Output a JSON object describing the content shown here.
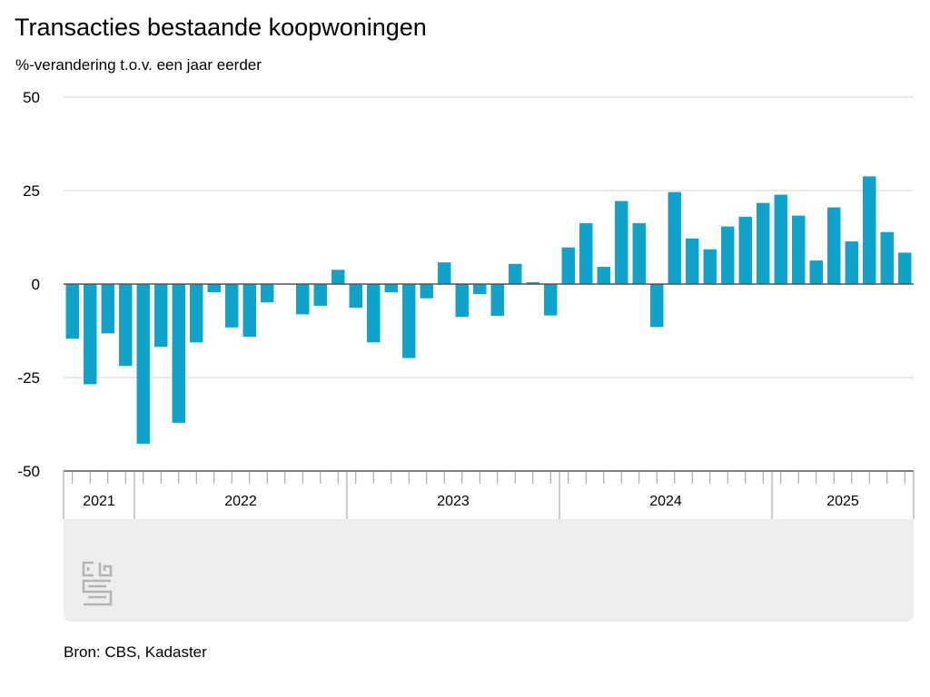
{
  "title": "Transacties bestaande koopwoningen",
  "subtitle": "%-verandering t.o.v. een jaar eerder",
  "source": "Bron: CBS, Kadaster",
  "logo_text": "cbs",
  "colors": {
    "bar": "#0fa3cc",
    "grid": "#d6d6d6",
    "axis": "#555555",
    "panel": "#eeeeee"
  },
  "chart_data": {
    "type": "bar",
    "title": "Transacties bestaande koopwoningen",
    "ylabel": "%-verandering t.o.v. een jaar eerder",
    "ylim": [
      -50,
      50
    ],
    "yticks": [
      50,
      25,
      0,
      -25,
      -50
    ],
    "ytick_labels": [
      "50",
      "25",
      "0",
      "-25",
      "-50"
    ],
    "grid": true,
    "x_years": [
      {
        "label": "2021",
        "months": 4
      },
      {
        "label": "2022",
        "months": 12
      },
      {
        "label": "2023",
        "months": 12
      },
      {
        "label": "2024",
        "months": 12
      },
      {
        "label": "2025",
        "months": 8
      }
    ],
    "categories": [
      "2021-09",
      "2021-10",
      "2021-11",
      "2021-12",
      "2022-01",
      "2022-02",
      "2022-03",
      "2022-04",
      "2022-05",
      "2022-06",
      "2022-07",
      "2022-08",
      "2022-09",
      "2022-10",
      "2022-11",
      "2022-12",
      "2023-01",
      "2023-02",
      "2023-03",
      "2023-04",
      "2023-05",
      "2023-06",
      "2023-07",
      "2023-08",
      "2023-09",
      "2023-10",
      "2023-11",
      "2023-12",
      "2024-01",
      "2024-02",
      "2024-03",
      "2024-04",
      "2024-05",
      "2024-06",
      "2024-07",
      "2024-08",
      "2024-09",
      "2024-10",
      "2024-11",
      "2024-12",
      "2025-01",
      "2025-02",
      "2025-03",
      "2025-04",
      "2025-05",
      "2025-06",
      "2025-07",
      "2025-08"
    ],
    "values": [
      -14.6,
      -26.8,
      -13.2,
      -21.9,
      -42.7,
      -16.8,
      -37.1,
      -15.6,
      -2.2,
      -11.6,
      -14.1,
      -4.9,
      0.0,
      -8.1,
      -5.8,
      3.8,
      -6.3,
      -15.6,
      -2.2,
      -19.8,
      -3.8,
      5.8,
      -8.8,
      -2.7,
      -8.5,
      5.4,
      0.5,
      -8.4,
      9.8,
      16.3,
      4.6,
      22.2,
      16.3,
      -11.5,
      24.6,
      12.2,
      9.3,
      15.4,
      18.0,
      21.7,
      23.9,
      18.3,
      6.3,
      20.5,
      11.4,
      28.8,
      13.9,
      8.4
    ]
  }
}
